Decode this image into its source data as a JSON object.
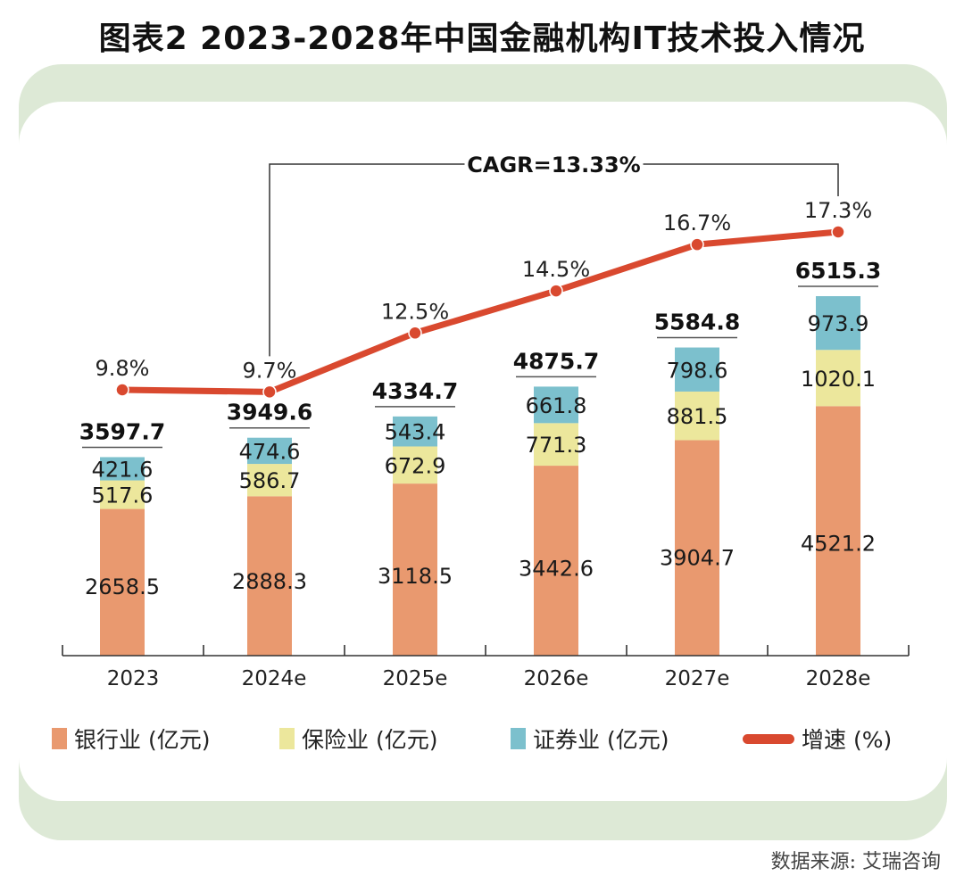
{
  "title": "图表2 2023-2028年中国金融机构IT技术投入情况",
  "source": "数据来源: 艾瑞咨询",
  "colors": {
    "bank": "#e9996f",
    "insurance": "#ece79c",
    "securities": "#7cc0cd",
    "growth": "#d9492f",
    "panel_outer": "#dde9d6",
    "axis": "#333333"
  },
  "legend": [
    {
      "key": "bank",
      "label": "银行业 (亿元)",
      "kind": "swatch"
    },
    {
      "key": "insurance",
      "label": "保险业 (亿元)",
      "kind": "swatch"
    },
    {
      "key": "securities",
      "label": "证券业 (亿元)",
      "kind": "swatch"
    },
    {
      "key": "growth",
      "label": "增速 (%)",
      "kind": "line"
    }
  ],
  "chart_data": {
    "type": "bar",
    "stacked": true,
    "title": "图表2 2023-2028年中国金融机构IT技术投入情况",
    "xlabel": "",
    "ylabel": "",
    "categories": [
      "2023",
      "2024e",
      "2025e",
      "2026e",
      "2027e",
      "2028e"
    ],
    "series": [
      {
        "name": "银行业 (亿元)",
        "key": "bank",
        "values": [
          2658.5,
          2888.3,
          3118.5,
          3442.6,
          3904.7,
          4521.2
        ]
      },
      {
        "name": "保险业 (亿元)",
        "key": "insurance",
        "values": [
          517.6,
          586.7,
          672.9,
          771.3,
          881.5,
          1020.1
        ]
      },
      {
        "name": "证券业 (亿元)",
        "key": "securities",
        "values": [
          421.6,
          474.6,
          543.4,
          661.8,
          798.6,
          973.9
        ]
      }
    ],
    "totals": [
      3597.7,
      3949.6,
      4334.7,
      4875.7,
      5584.8,
      6515.3
    ],
    "total_labels": [
      "3597.7",
      "3949.6",
      "4334.7",
      "4875.7",
      "5584.8",
      "6515.3"
    ],
    "segment_labels": [
      [
        "2658.5",
        "517.6",
        "421.6"
      ],
      [
        "2888.3",
        "586.7",
        "474.6"
      ],
      [
        "3118.5",
        "672.9",
        "543.4"
      ],
      [
        "3442.6",
        "771.3",
        "661.8"
      ],
      [
        "3904.7",
        "881.5",
        "798.6"
      ],
      [
        "4521.2",
        "1020.1",
        "973.9"
      ]
    ],
    "line_series": {
      "name": "增速 (%)",
      "key": "growth",
      "type": "line",
      "values": [
        9.8,
        9.7,
        12.5,
        14.5,
        16.7,
        17.3
      ],
      "labels": [
        "9.8%",
        "9.7%",
        "12.5%",
        "14.5%",
        "16.7%",
        "17.3%"
      ]
    },
    "annotation": {
      "text": "CAGR=13.33%",
      "from_category": "2024e",
      "to_category": "2028e"
    },
    "legend_position": "bottom",
    "grid": false
  }
}
